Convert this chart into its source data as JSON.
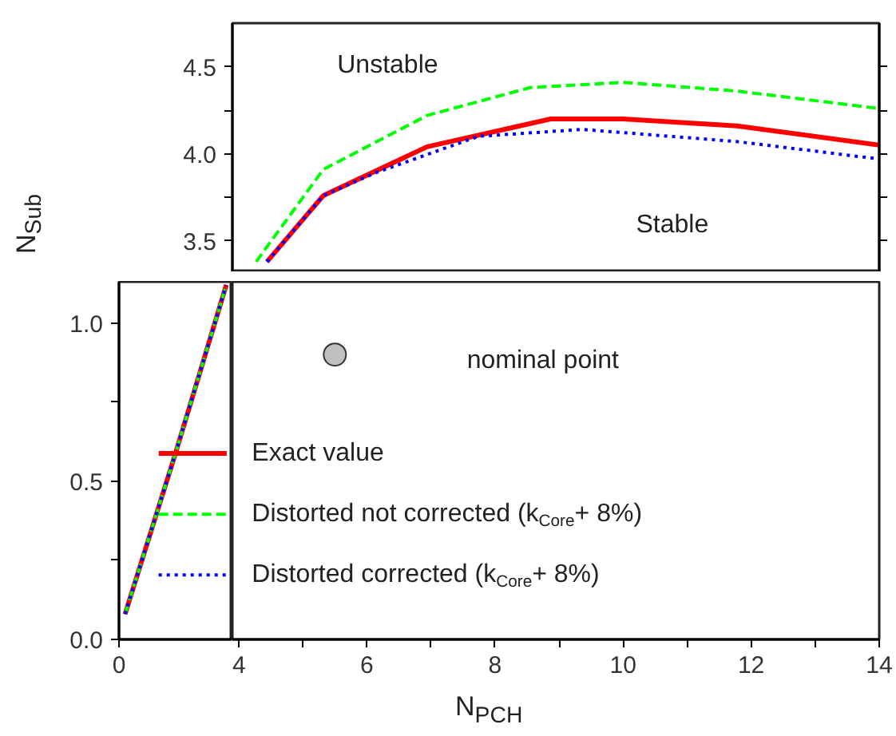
{
  "chart_data": [
    {
      "type": "line",
      "xlim": [
        3.9,
        14
      ],
      "ylim": [
        3.32,
        4.75
      ],
      "yticks": [
        {
          "value": 3.5,
          "label": "3.5"
        },
        {
          "value": 3.75,
          "label": null
        },
        {
          "value": 4.0,
          "label": "4.0"
        },
        {
          "value": 4.25,
          "label": null
        },
        {
          "value": 4.5,
          "label": "4.5"
        }
      ],
      "tick_labels": "y",
      "annotations": [
        "Unstable",
        "Stable"
      ],
      "series": [
        {
          "color": "#ff0000",
          "line_style": "solid",
          "x": [
            4.44,
            5.32,
            6.94,
            8.87,
            10.0,
            11.78,
            14.0
          ],
          "values": [
            3.38,
            3.76,
            4.04,
            4.2,
            4.2,
            4.16,
            4.05
          ]
        },
        {
          "color": "#00ff00",
          "line_style": "dashed",
          "x": [
            4.27,
            5.32,
            6.94,
            8.55,
            10.0,
            11.78,
            14.0
          ],
          "values": [
            3.38,
            3.91,
            4.22,
            4.38,
            4.41,
            4.36,
            4.26
          ]
        },
        {
          "color": "#0000ff",
          "line_style": "dotted",
          "x": [
            4.44,
            5.32,
            6.13,
            7.74,
            9.36,
            11.78,
            14.0
          ],
          "values": [
            3.38,
            3.76,
            3.89,
            4.1,
            4.14,
            4.07,
            3.97
          ]
        }
      ]
    },
    {
      "type": "line",
      "categories": [
        null,
        null,
        null
      ],
      "ylim": [
        0,
        1.13
      ],
      "yticks": [
        {
          "value": 0,
          "label": "0.0"
        },
        {
          "value": 0.25,
          "label": null
        },
        {
          "value": 0.5,
          "label": "0.5"
        },
        {
          "value": 0.75,
          "label": null
        },
        {
          "value": 1.0,
          "label": "1.0"
        }
      ],
      "ylabel": "N$_{Sub}$",
      "legend": "bottom right",
      "annotations": [
        "0"
      ],
      "series": [
        {
          "name": "Exact value",
          "color": "#ff0000",
          "line_style": "solid",
          "values": [
            0.08,
            0.59,
            1.12
          ]
        },
        {
          "name": "Distorted not corrected (k$_{Core}$+ 8%)",
          "color": "#00ff00",
          "line_style": "dashed",
          "values": [
            0.08,
            0.59,
            1.12
          ]
        },
        {
          "name": "Distorted corrected (k$_{Core}$+ 8%)",
          "color": "#0000ff",
          "line_style": "dotted",
          "values": [
            0.08,
            0.59,
            1.12
          ]
        }
      ]
    },
    {
      "type": "scatter",
      "xlim": [
        3.9,
        14
      ],
      "ylim": [
        0,
        1.13
      ],
      "xticks": [
        4,
        {
          "value": 5,
          "label": null
        },
        6,
        {
          "value": 7,
          "label": null
        },
        8,
        {
          "value": 9,
          "label": null
        },
        10,
        {
          "value": 11,
          "label": null
        },
        12,
        {
          "value": 13,
          "label": null
        },
        14
      ],
      "tick_labels": "x",
      "xlabel": "N$_{PCH}$",
      "marker": "circle",
      "annotations": [
        "nominal point"
      ],
      "series": [
        {
          "color": "#c0c0c0",
          "x": [
            5.5
          ],
          "values": [
            0.9
          ]
        }
      ]
    }
  ]
}
